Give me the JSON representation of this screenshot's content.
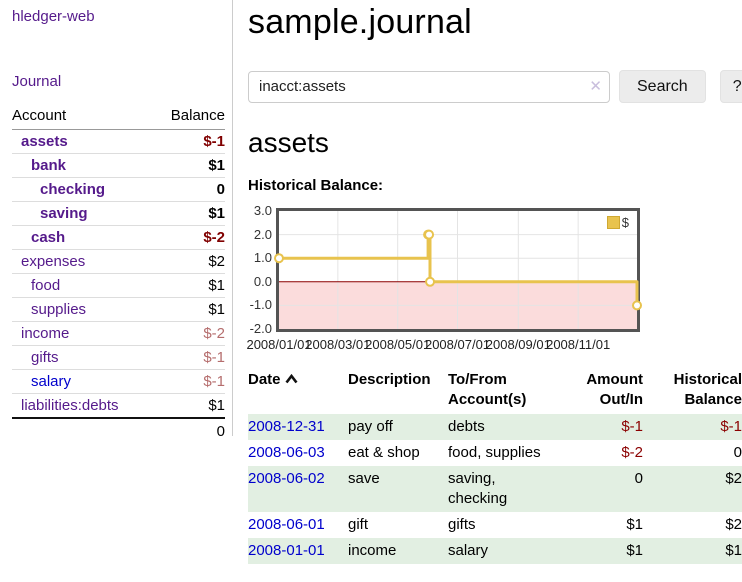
{
  "sidebar": {
    "brand": "hledger-web",
    "nav": [
      {
        "label": "Journal"
      }
    ],
    "accounts_table": {
      "headers": {
        "account": "Account",
        "balance": "Balance"
      },
      "rows": [
        {
          "name": "assets",
          "indent": 1,
          "bold": true,
          "balance": "$-1",
          "balance_style": "neg-strong"
        },
        {
          "name": "bank",
          "indent": 2,
          "bold": true,
          "balance": "$1",
          "balance_style": "pos"
        },
        {
          "name": "checking",
          "indent": 3,
          "bold": true,
          "balance": "0",
          "balance_style": "pos"
        },
        {
          "name": "saving",
          "indent": 3,
          "bold": true,
          "balance": "$1",
          "balance_style": "pos"
        },
        {
          "name": "cash",
          "indent": 2,
          "bold": true,
          "balance": "$-2",
          "balance_style": "neg-strong"
        },
        {
          "name": "expenses",
          "indent": 1,
          "bold": false,
          "balance": "$2",
          "balance_style": "pos"
        },
        {
          "name": "food",
          "indent": 2,
          "bold": false,
          "balance": "$1",
          "balance_style": "pos"
        },
        {
          "name": "supplies",
          "indent": 2,
          "bold": false,
          "balance": "$1",
          "balance_style": "pos"
        },
        {
          "name": "income",
          "indent": 1,
          "bold": false,
          "balance": "$-2",
          "balance_style": "neg-soft"
        },
        {
          "name": "gifts",
          "indent": 2,
          "bold": false,
          "balance": "$-1",
          "balance_style": "neg-soft"
        },
        {
          "name": "salary",
          "indent": 2,
          "bold": false,
          "link_color": "blue",
          "balance": "$-1",
          "balance_style": "neg-soft"
        },
        {
          "name": "liabilities:debts",
          "indent": 1,
          "bold": false,
          "balance": "$1",
          "balance_style": "pos"
        }
      ],
      "total": "0"
    }
  },
  "header": {
    "title": "sample.journal"
  },
  "search": {
    "value": "inacct:assets",
    "clear_icon": "✕",
    "button": "Search",
    "help_button": "?"
  },
  "account_page": {
    "title": "assets",
    "chart_label": "Historical Balance:"
  },
  "chart_data": {
    "type": "line",
    "title": "Historical Balance:",
    "style": "step-with-markers",
    "series": [
      {
        "name": "$",
        "color": "#e8c34e",
        "points": [
          {
            "date": "2008-01-01",
            "value": 1
          },
          {
            "date": "2008-06-01",
            "value": 2
          },
          {
            "date": "2008-06-02",
            "value": 2
          },
          {
            "date": "2008-06-03",
            "value": 0
          },
          {
            "date": "2008-12-31",
            "value": -1
          }
        ]
      }
    ],
    "x_ticks": [
      "2008/01/01",
      "2008/03/01",
      "2008/05/01",
      "2008/07/01",
      "2008/09/01",
      "2008/11/01"
    ],
    "y_ticks": [
      "3.0",
      "2.0",
      "1.0",
      "0.0",
      "-1.0",
      "-2.0"
    ],
    "xlim": [
      "2008-01-01",
      "2008-12-31"
    ],
    "ylim": [
      -2,
      3
    ],
    "grid": true,
    "legend": {
      "label": "$",
      "position": "top-right"
    },
    "negative_region_color": "#fbdcdc",
    "zero_line_color": "#8b0000",
    "grid_color": "#e4e4e4"
  },
  "register_table": {
    "headers": [
      {
        "label": "Date",
        "sortable": true,
        "sort": "ascending"
      },
      {
        "label": "Description"
      },
      {
        "label": "To/From Account(s)"
      },
      {
        "label": "Amount Out/In"
      },
      {
        "label": "Historical Balance"
      }
    ],
    "rows": [
      {
        "date": "2008-12-31",
        "description": "pay off",
        "accounts": "debts",
        "amount": "$-1",
        "amount_neg": true,
        "balance": "$-1",
        "balance_neg": true,
        "shaded": true
      },
      {
        "date": "2008-06-03",
        "description": "eat & shop",
        "accounts": "food, supplies",
        "amount": "$-2",
        "amount_neg": true,
        "balance": "0",
        "balance_neg": false,
        "shaded": false
      },
      {
        "date": "2008-06-02",
        "description": "save",
        "accounts": "saving, checking",
        "amount": "0",
        "amount_neg": false,
        "balance": "$2",
        "balance_neg": false,
        "shaded": true
      },
      {
        "date": "2008-06-01",
        "description": "gift",
        "accounts": "gifts",
        "amount": "$1",
        "amount_neg": false,
        "balance": "$2",
        "balance_neg": false,
        "shaded": false
      },
      {
        "date": "2008-01-01",
        "description": "income",
        "accounts": "salary",
        "amount": "$1",
        "amount_neg": false,
        "balance": "$1",
        "balance_neg": false,
        "shaded": true
      }
    ]
  }
}
